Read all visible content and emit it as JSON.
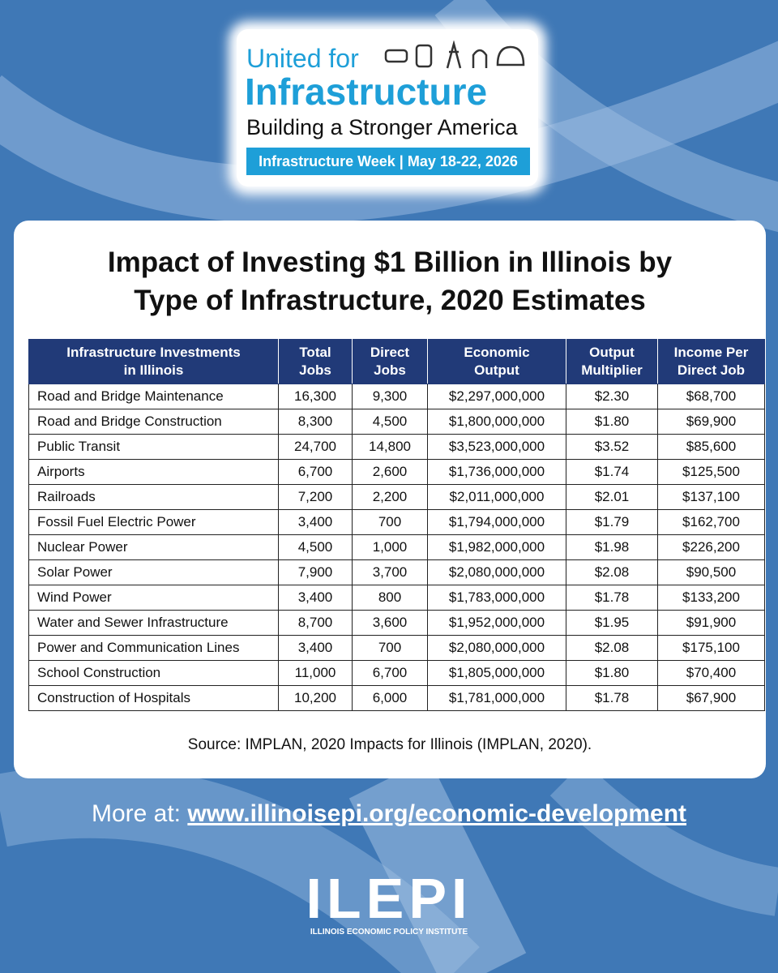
{
  "header": {
    "line1": "United for",
    "line2": "Infrastructure",
    "line3": "Building a Stronger America",
    "banner": "Infrastructure Week | May 18-22, 2026"
  },
  "title": "Impact of Investing $1 Billion in Illinois by Type of Infrastructure, 2020 Estimates",
  "table": {
    "columns": [
      [
        "Infrastructure Investments",
        "in Illinois"
      ],
      [
        "Total",
        "Jobs"
      ],
      [
        "Direct",
        "Jobs"
      ],
      [
        "Economic",
        "Output"
      ],
      [
        "Output",
        "Multiplier"
      ],
      [
        "Income Per",
        "Direct Job"
      ]
    ],
    "rows": [
      [
        "Road and Bridge Maintenance",
        "16,300",
        "9,300",
        "$2,297,000,000",
        "$2.30",
        "$68,700"
      ],
      [
        "Road and Bridge Construction",
        "8,300",
        "4,500",
        "$1,800,000,000",
        "$1.80",
        "$69,900"
      ],
      [
        "Public Transit",
        "24,700",
        "14,800",
        "$3,523,000,000",
        "$3.52",
        "$85,600"
      ],
      [
        "Airports",
        "6,700",
        "2,600",
        "$1,736,000,000",
        "$1.74",
        "$125,500"
      ],
      [
        "Railroads",
        "7,200",
        "2,200",
        "$2,011,000,000",
        "$2.01",
        "$137,100"
      ],
      [
        "Fossil Fuel Electric Power",
        "3,400",
        "700",
        "$1,794,000,000",
        "$1.79",
        "$162,700"
      ],
      [
        "Nuclear Power",
        "4,500",
        "1,000",
        "$1,982,000,000",
        "$1.98",
        "$226,200"
      ],
      [
        "Solar Power",
        "7,900",
        "3,700",
        "$2,080,000,000",
        "$2.08",
        "$90,500"
      ],
      [
        "Wind Power",
        "3,400",
        "800",
        "$1,783,000,000",
        "$1.78",
        "$133,200"
      ],
      [
        "Water and Sewer Infrastructure",
        "8,700",
        "3,600",
        "$1,952,000,000",
        "$1.95",
        "$91,900"
      ],
      [
        "Power and Communication Lines",
        "3,400",
        "700",
        "$2,080,000,000",
        "$2.08",
        "$175,100"
      ],
      [
        "School Construction",
        "11,000",
        "6,700",
        "$1,805,000,000",
        "$1.80",
        "$70,400"
      ],
      [
        "Construction of Hospitals",
        "10,200",
        "6,000",
        "$1,781,000,000",
        "$1.78",
        "$67,900"
      ]
    ]
  },
  "source": "Source: IMPLAN, 2020 Impacts for Illinois (IMPLAN, 2020).",
  "footer": {
    "prefix": "More at:",
    "link": "www.illinoisepi.org/economic-development",
    "logo": "ILEPI",
    "logo_subtitle": "ILLINOIS ECONOMIC POLICY INSTITUTE"
  }
}
